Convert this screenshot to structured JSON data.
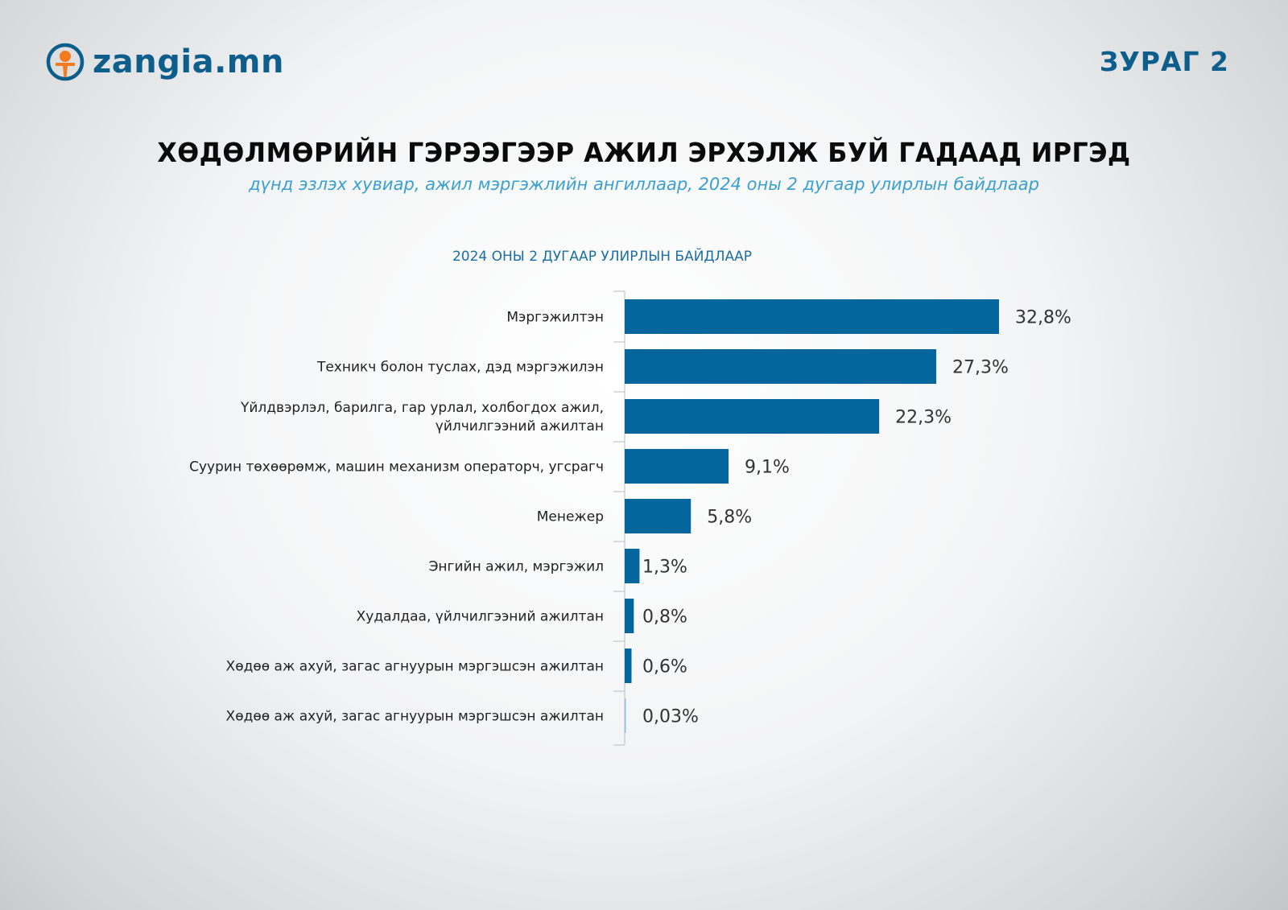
{
  "logo": {
    "text": "zangia.mn",
    "icon": "person-circle-icon",
    "colors": {
      "ring": "#0e5e8c",
      "person": "#f47a20"
    }
  },
  "figure_label": "ЗУРАГ 2",
  "title": "ХӨДӨЛМӨРИЙН ГЭРЭЭГЭЭР АЖИЛ ЭРХЭЛЖ БУЙ ГАДААД ИРГЭД",
  "subtitle": "дүнд эзлэх хувиар, ажил мэргэжлийн ангиллаар, 2024 оны 2 дугаар улирлын байдлаар",
  "colors": {
    "bar": "#05669d",
    "bar_small": "#8fc1dd",
    "title": "#0a0a0a",
    "subtitle": "#3aa0cf",
    "brand": "#0e5e8c"
  },
  "chart_data": {
    "type": "bar",
    "orientation": "horizontal",
    "title": "2024 ОНЫ 2 ДУГААР УЛИРЛЫН БАЙДЛААР",
    "categories": [
      [
        "Мэргэжилтэн"
      ],
      [
        "Техникч болон туслах, дэд мэргэжилэн"
      ],
      [
        "Үйлдвэрлэл, барилга, гар урлал, холбогдох ажил,",
        "үйлчилгээний ажилтан"
      ],
      [
        "Суурин төхөөрөмж, машин механизм операторч, угсрагч"
      ],
      [
        "Менежер"
      ],
      [
        "Энгийн ажил, мэргэжил"
      ],
      [
        "Худалдаа, үйлчилгээний ажилтан"
      ],
      [
        "Хөдөө аж ахуй, загас агнуурын мэргэшсэн ажилтан"
      ],
      [
        "Хөдөө аж ахуй, загас агнуурын мэргэшсэн ажилтан"
      ]
    ],
    "values": [
      32.8,
      27.3,
      22.3,
      9.1,
      5.8,
      1.3,
      0.8,
      0.6,
      0.03
    ],
    "value_labels": [
      "32,8%",
      "27,3%",
      "22,3%",
      "9,1%",
      "5,8%",
      "1,3%",
      "0,8%",
      "0,6%",
      "0,03%"
    ],
    "xlim": [
      0,
      32.8
    ],
    "xlabel": "",
    "ylabel": "",
    "grid": false,
    "legend": "none"
  }
}
